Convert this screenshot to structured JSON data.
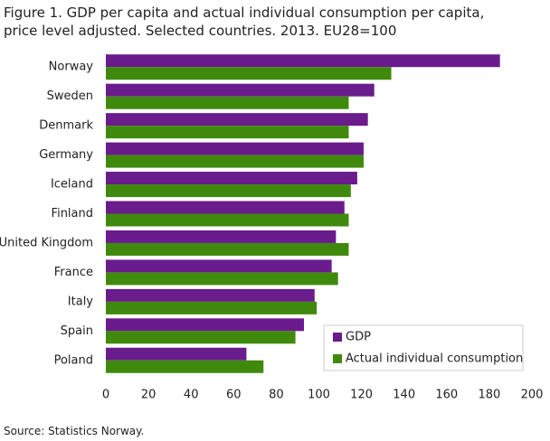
{
  "chart_data": {
    "type": "hbar",
    "title": "Figure 1. GDP per capita and actual individual consumption per capita, price level adjusted. Selected countries. 2013. EU28=100",
    "source": "Source: Statistics Norway.",
    "categories": [
      "Norway",
      "Sweden",
      "Denmark",
      "Germany",
      "Iceland",
      "Finland",
      "United Kingdom",
      "France",
      "Italy",
      "Spain",
      "Poland"
    ],
    "series": [
      {
        "name": "GDP",
        "color": "#6a1b8c",
        "values": [
          185,
          126,
          123,
          121,
          118,
          112,
          108,
          106,
          98,
          93,
          66
        ]
      },
      {
        "name": "Actual individual consumption",
        "color": "#3f8a0c",
        "values": [
          134,
          114,
          114,
          121,
          115,
          114,
          114,
          109,
          99,
          89,
          74
        ]
      }
    ],
    "xlim": [
      0,
      200
    ],
    "xticks": [
      0,
      20,
      40,
      60,
      80,
      100,
      120,
      140,
      160,
      180,
      200
    ],
    "grid": false,
    "legend": "lower right"
  }
}
